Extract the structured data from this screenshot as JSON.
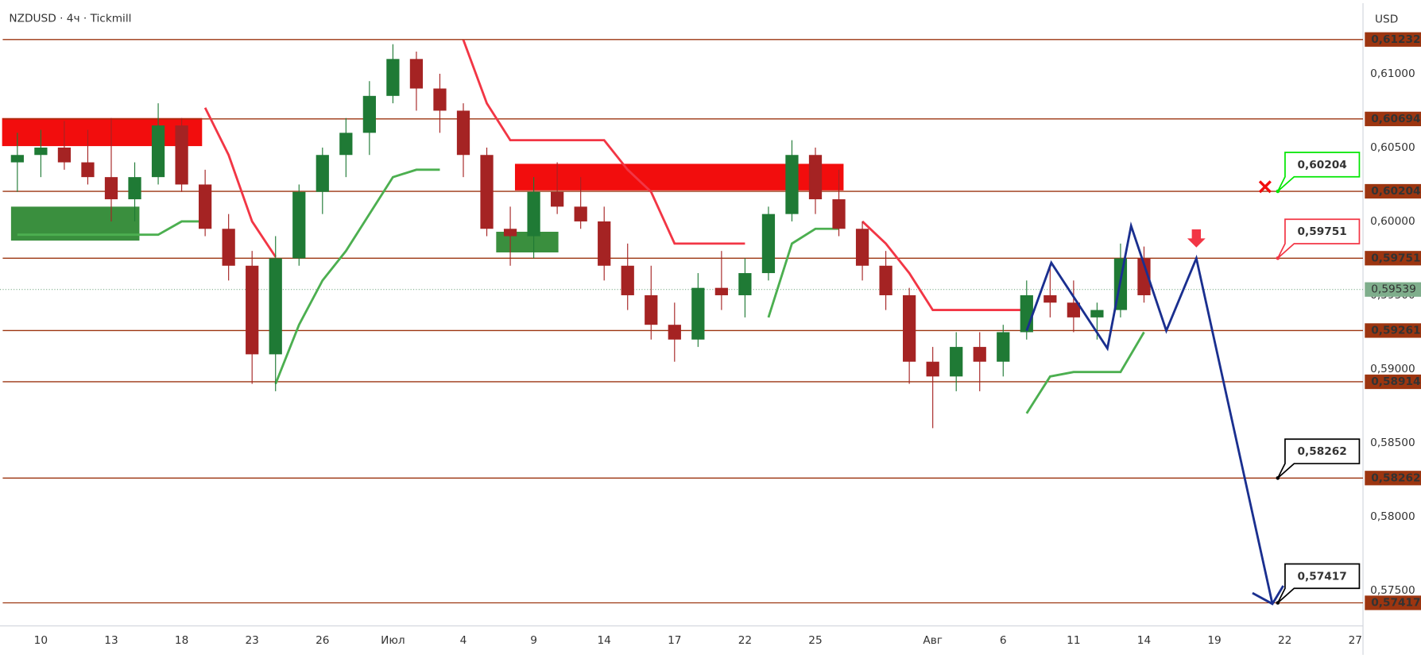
{
  "chart_data": {
    "type": "candlestick",
    "title": "NZDUSD · 4ч · Tickmill",
    "currency": "USD",
    "x": [
      -1,
      0,
      1,
      2,
      3,
      4,
      5,
      6,
      7,
      8,
      9,
      10,
      11,
      12,
      13,
      14,
      15,
      16,
      17,
      18,
      19,
      20,
      21,
      22,
      23,
      24,
      25,
      26,
      27,
      28,
      29,
      30,
      31,
      32,
      33,
      34,
      35,
      36,
      37,
      38,
      39,
      40,
      41,
      42,
      43,
      44,
      45,
      46,
      47
    ],
    "open": [
      0.604,
      0.6045,
      0.605,
      0.604,
      0.603,
      0.6015,
      0.603,
      0.6065,
      0.6025,
      0.5995,
      0.597,
      0.591,
      0.5975,
      0.602,
      0.6045,
      0.606,
      0.6085,
      0.611,
      0.609,
      0.6075,
      0.6045,
      0.5995,
      0.599,
      0.602,
      0.601,
      0.6,
      0.597,
      0.595,
      0.593,
      0.592,
      0.5955,
      0.595,
      0.5965,
      0.6005,
      0.6045,
      0.6015,
      0.5995,
      0.597,
      0.595,
      0.5905,
      0.5895,
      0.5915,
      0.5905,
      0.5925,
      0.595,
      0.5945,
      0.5935,
      0.594,
      0.5975
    ],
    "high": [
      0.606,
      0.6062,
      0.6068,
      0.6062,
      0.607,
      0.604,
      0.608,
      0.607,
      0.6035,
      0.6005,
      0.598,
      0.599,
      0.6025,
      0.605,
      0.607,
      0.6095,
      0.612,
      0.6115,
      0.61,
      0.608,
      0.605,
      0.601,
      0.603,
      0.604,
      0.603,
      0.601,
      0.5985,
      0.597,
      0.5945,
      0.5965,
      0.598,
      0.5975,
      0.601,
      0.6055,
      0.605,
      0.6035,
      0.6,
      0.598,
      0.5955,
      0.5915,
      0.5925,
      0.5925,
      0.593,
      0.596,
      0.597,
      0.596,
      0.5945,
      0.5985,
      0.5983
    ],
    "low": [
      0.602,
      0.603,
      0.6035,
      0.6025,
      0.6,
      0.6,
      0.6025,
      0.602,
      0.599,
      0.596,
      0.589,
      0.5885,
      0.597,
      0.6005,
      0.603,
      0.6045,
      0.608,
      0.6075,
      0.606,
      0.603,
      0.599,
      0.597,
      0.5975,
      0.6005,
      0.5995,
      0.596,
      0.594,
      0.592,
      0.5905,
      0.5915,
      0.594,
      0.5935,
      0.596,
      0.6,
      0.6005,
      0.599,
      0.596,
      0.594,
      0.589,
      0.586,
      0.5885,
      0.5885,
      0.5895,
      0.592,
      0.5935,
      0.5925,
      0.592,
      0.5935,
      0.5945
    ],
    "close": [
      0.6045,
      0.605,
      0.604,
      0.603,
      0.6015,
      0.603,
      0.6065,
      0.6025,
      0.5995,
      0.597,
      0.591,
      0.5975,
      0.602,
      0.6045,
      0.606,
      0.6085,
      0.611,
      0.609,
      0.6075,
      0.6045,
      0.5995,
      0.599,
      0.602,
      0.601,
      0.6,
      0.597,
      0.595,
      0.593,
      0.592,
      0.5955,
      0.595,
      0.5965,
      0.6005,
      0.6045,
      0.6015,
      0.5995,
      0.597,
      0.595,
      0.5905,
      0.5895,
      0.5915,
      0.5905,
      0.5925,
      0.595,
      0.5945,
      0.5935,
      0.594,
      0.5975,
      0.595
    ],
    "up_color": "#1f7a35",
    "down_color": "#a52323",
    "xlim": [
      -1.74,
      56.33
    ],
    "xticks": [
      {
        "value": 0,
        "label": "10"
      },
      {
        "value": 3,
        "label": "13"
      },
      {
        "value": 6,
        "label": "18"
      },
      {
        "value": 9,
        "label": "23"
      },
      {
        "value": 12,
        "label": "26"
      },
      {
        "value": 15,
        "label": "Июл"
      },
      {
        "value": 18,
        "label": "4"
      },
      {
        "value": 21,
        "label": "9"
      },
      {
        "value": 24,
        "label": "14"
      },
      {
        "value": 27,
        "label": "17"
      },
      {
        "value": 30,
        "label": "22"
      },
      {
        "value": 33,
        "label": "25"
      },
      {
        "value": 38,
        "label": "Авг"
      },
      {
        "value": 41,
        "label": "6"
      },
      {
        "value": 44,
        "label": "11"
      },
      {
        "value": 47,
        "label": "14"
      },
      {
        "value": 50,
        "label": "19"
      },
      {
        "value": 53,
        "label": "22"
      },
      {
        "value": 56,
        "label": "27"
      }
    ],
    "ylim": [
      0.57261,
      0.61478
    ],
    "yticks": [
      {
        "value": 0.61,
        "label": "0,61000"
      },
      {
        "value": 0.605,
        "label": "0,60500"
      },
      {
        "value": 0.6,
        "label": "0,60000"
      },
      {
        "value": 0.595,
        "label": "0,59500"
      },
      {
        "value": 0.59,
        "label": "0,59000"
      },
      {
        "value": 0.585,
        "label": "0,58500"
      },
      {
        "value": 0.58,
        "label": "0,58000"
      },
      {
        "value": 0.575,
        "label": "0,57500"
      }
    ],
    "levels": [
      {
        "value": 0.61232,
        "label": "0,61232"
      },
      {
        "value": 0.60694,
        "label": "0,60694"
      },
      {
        "value": 0.60204,
        "label": "0,60204"
      },
      {
        "value": 0.59751,
        "label": "0,59751"
      },
      {
        "value": 0.59261,
        "label": "0,59261"
      },
      {
        "value": 0.58914,
        "label": "0,58914"
      },
      {
        "value": 0.58262,
        "label": "0,58262"
      },
      {
        "value": 0.57417,
        "label": "0,57417"
      }
    ],
    "level_color": "#9c3510",
    "last_price": {
      "value": 0.59539,
      "label": "0,59539"
    },
    "last_color": "#7fae8c",
    "trend_lines": [
      {
        "color": "#f23645",
        "values": [
          null,
          null,
          null,
          null,
          null,
          null,
          null,
          null,
          0.6077,
          0.6045,
          0.6,
          0.5976,
          null,
          null,
          null,
          null,
          null,
          null,
          null,
          0.6123,
          0.608,
          0.6055,
          0.6055,
          0.6055,
          0.6055,
          0.6055,
          0.6035,
          0.602,
          0.5985,
          0.5985,
          0.5985,
          0.5985,
          null,
          null,
          null,
          null,
          0.6,
          0.5985,
          0.5965,
          0.594,
          0.594,
          0.594,
          0.594,
          0.594,
          null,
          null,
          null,
          null,
          null
        ]
      },
      {
        "color": "#4caf50",
        "values": [
          0.5991,
          0.5991,
          0.5991,
          0.5991,
          0.5991,
          0.5991,
          0.5991,
          0.6,
          0.6,
          null,
          null,
          0.589,
          0.593,
          0.596,
          0.598,
          0.6005,
          0.603,
          0.6035,
          0.6035,
          null,
          null,
          null,
          null,
          null,
          null,
          null,
          null,
          null,
          null,
          null,
          null,
          null,
          0.5935,
          0.5985,
          0.5995,
          0.5995,
          null,
          null,
          null,
          null,
          null,
          null,
          null,
          0.587,
          0.5895,
          0.5898,
          0.5898,
          0.5898,
          0.5925
        ]
      }
    ],
    "zones": [
      {
        "x": [
          -1.65,
          6.87
        ],
        "y": [
          0.6051,
          0.607
        ],
        "color": "#f20d0d"
      },
      {
        "x": [
          20.2,
          34.2
        ],
        "y": [
          0.6021,
          0.6039
        ],
        "color": "#f20d0d"
      },
      {
        "x": [
          -1.27,
          4.2
        ],
        "y": [
          0.5987,
          0.601
        ],
        "color": "#3a8f3e"
      },
      {
        "x": [
          19.4,
          22.05
        ],
        "y": [
          0.5979,
          0.5993
        ],
        "color": "#3a8f3e"
      }
    ],
    "pattern": {
      "color": "#1a2f8f",
      "x": [
        42.0,
        43.05,
        45.44,
        46.45,
        47.95,
        49.23,
        52.47
      ],
      "y": [
        0.5926,
        0.5972,
        0.5914,
        0.5997,
        0.5926,
        0.5975,
        0.5741
      ]
    },
    "callouts": [
      {
        "value": 0.60204,
        "label": "0,60204",
        "color": "#00e600",
        "x": 52.7
      },
      {
        "value": 0.59751,
        "label": "0,59751",
        "color": "#f23645",
        "x": 52.7
      },
      {
        "value": 0.58262,
        "label": "0,58262",
        "color": "#000000",
        "x": 52.7
      },
      {
        "value": 0.57417,
        "label": "0,57417",
        "color": "#000000",
        "x": 52.7
      }
    ]
  }
}
